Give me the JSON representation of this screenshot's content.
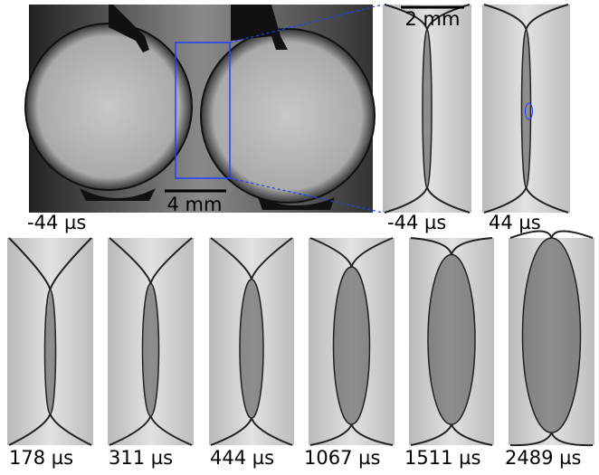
{
  "scale_bars": {
    "overview": "4 mm",
    "zoom": "2 mm"
  },
  "panels": [
    {
      "label": "-44 µs"
    },
    {
      "label": "-44 µs"
    },
    {
      "label": "44 µs"
    },
    {
      "label": "178 µs"
    },
    {
      "label": "311 µs"
    },
    {
      "label": "444 µs"
    },
    {
      "label": "1067 µs"
    },
    {
      "label": "1511 µs"
    },
    {
      "label": "2489 µs"
    }
  ]
}
